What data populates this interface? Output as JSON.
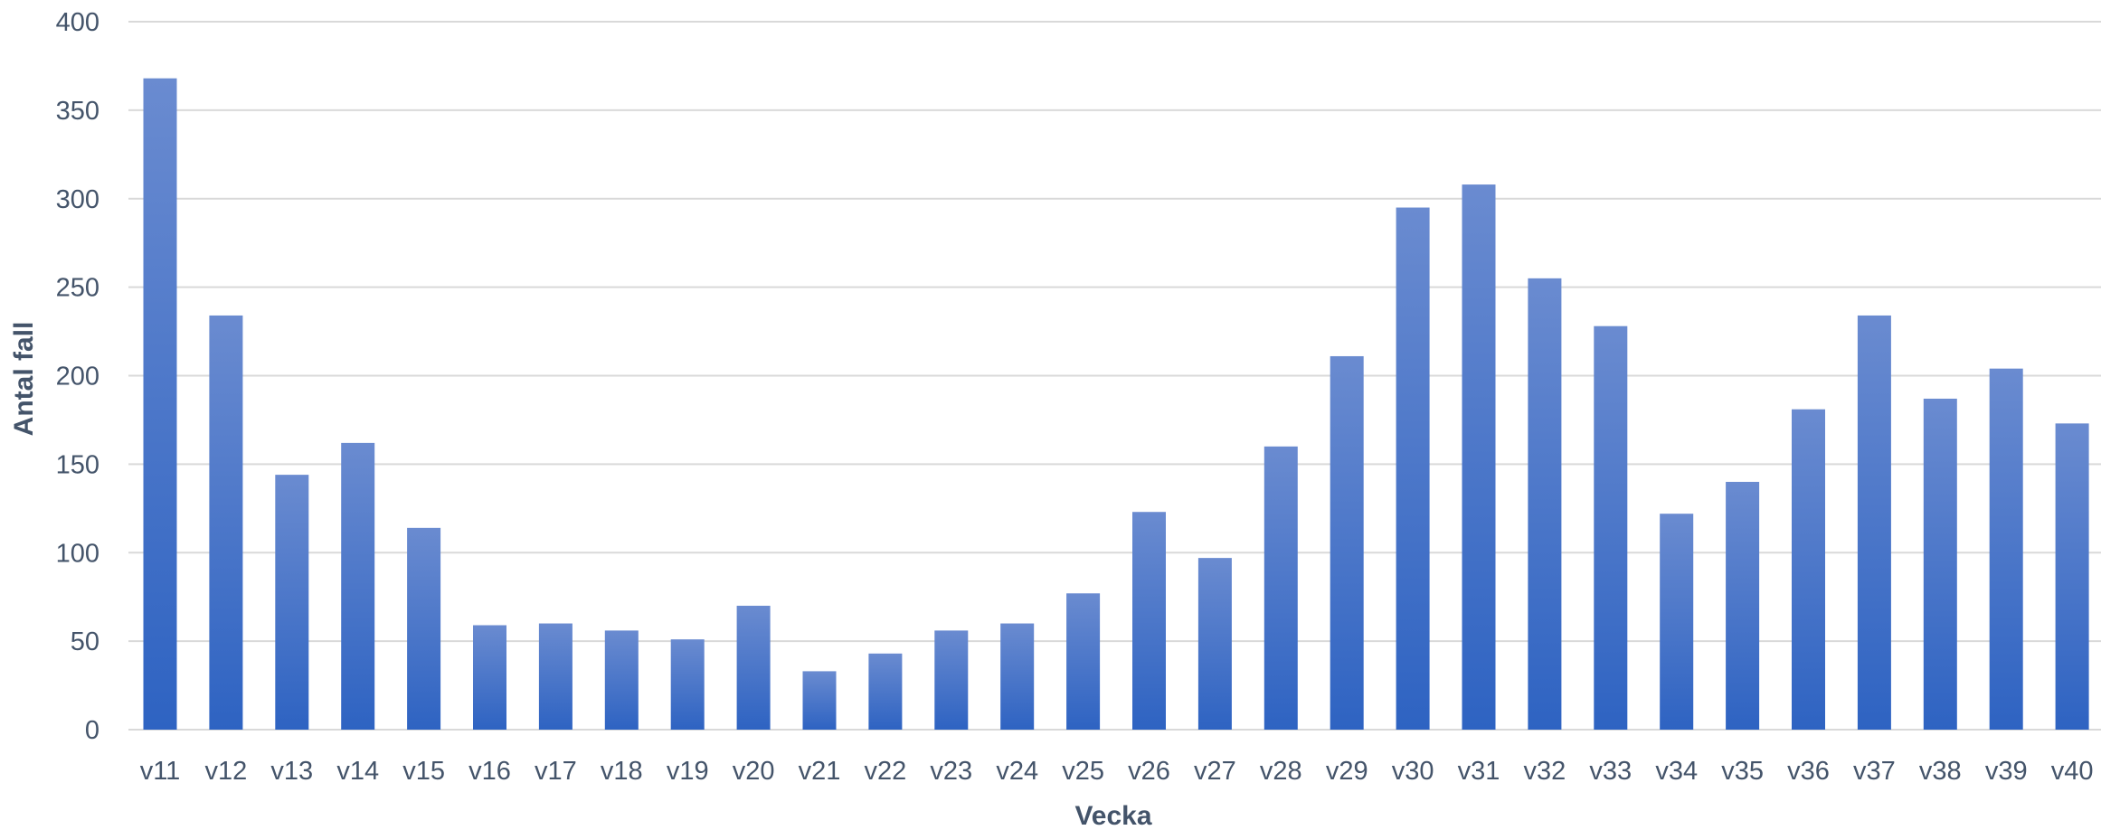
{
  "chart_data": {
    "type": "bar",
    "title": "",
    "xlabel": "Vecka",
    "ylabel": "Antal fall",
    "ylim": [
      0,
      400
    ],
    "yticks": [
      0,
      50,
      100,
      150,
      200,
      250,
      300,
      350,
      400
    ],
    "grid": true,
    "legend": "none",
    "bar_color_top": "#6a8bd0",
    "bar_color_bottom": "#2e63c2",
    "grid_color": "#d9d9d9",
    "text_color": "#44546a",
    "categories": [
      "v11",
      "v12",
      "v13",
      "v14",
      "v15",
      "v16",
      "v17",
      "v18",
      "v19",
      "v20",
      "v21",
      "v22",
      "v23",
      "v24",
      "v25",
      "v26",
      "v27",
      "v28",
      "v29",
      "v30",
      "v31",
      "v32",
      "v33",
      "v34",
      "v35",
      "v36",
      "v37",
      "v38",
      "v39",
      "v40"
    ],
    "values": [
      368,
      234,
      144,
      162,
      114,
      59,
      60,
      56,
      51,
      70,
      33,
      43,
      56,
      60,
      77,
      123,
      97,
      160,
      211,
      295,
      308,
      255,
      228,
      122,
      140,
      181,
      234,
      187,
      204,
      173
    ]
  }
}
